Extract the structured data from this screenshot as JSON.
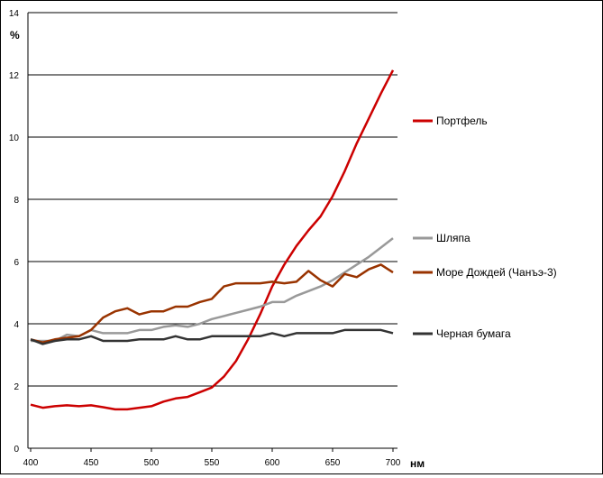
{
  "chart_data": {
    "type": "line",
    "title": "",
    "xlabel": "нм",
    "ylabel": "%",
    "xlim": [
      400,
      700
    ],
    "ylim": [
      0,
      14
    ],
    "x_ticks": [
      400,
      450,
      500,
      550,
      600,
      650,
      700
    ],
    "y_ticks": [
      0,
      2,
      4,
      6,
      8,
      10,
      12,
      14
    ],
    "grid": "horizontal",
    "legend_position": "right",
    "x": [
      400,
      410,
      420,
      430,
      440,
      450,
      460,
      470,
      480,
      490,
      500,
      510,
      520,
      530,
      540,
      550,
      560,
      570,
      580,
      590,
      600,
      610,
      620,
      630,
      640,
      650,
      660,
      670,
      680,
      690,
      700
    ],
    "series": [
      {
        "name": "Портфель",
        "color": "#cc0000",
        "values": [
          1.4,
          1.3,
          1.35,
          1.38,
          1.35,
          1.38,
          1.32,
          1.25,
          1.25,
          1.3,
          1.35,
          1.5,
          1.6,
          1.65,
          1.8,
          1.95,
          2.3,
          2.8,
          3.5,
          4.3,
          5.2,
          5.9,
          6.5,
          7.0,
          7.45,
          8.1,
          8.9,
          9.8,
          10.6,
          11.4,
          12.15
        ]
      },
      {
        "name": "Шляпа",
        "color": "#999999",
        "values": [
          3.45,
          3.45,
          3.45,
          3.65,
          3.6,
          3.8,
          3.7,
          3.7,
          3.7,
          3.8,
          3.8,
          3.9,
          3.95,
          3.9,
          4.0,
          4.15,
          4.25,
          4.35,
          4.45,
          4.55,
          4.7,
          4.7,
          4.9,
          5.05,
          5.2,
          5.4,
          5.65,
          5.9,
          6.15,
          6.45,
          6.75
        ]
      },
      {
        "name": "Море Дождей (Чанъэ-3)",
        "color": "#993300",
        "values": [
          3.5,
          3.4,
          3.5,
          3.55,
          3.6,
          3.8,
          4.2,
          4.4,
          4.5,
          4.3,
          4.4,
          4.4,
          4.55,
          4.55,
          4.7,
          4.8,
          5.2,
          5.3,
          5.3,
          5.3,
          5.35,
          5.3,
          5.35,
          5.7,
          5.4,
          5.2,
          5.6,
          5.5,
          5.75,
          5.9,
          5.65
        ]
      },
      {
        "name": "Черная бумага",
        "color": "#333333",
        "values": [
          3.5,
          3.35,
          3.45,
          3.5,
          3.5,
          3.6,
          3.45,
          3.45,
          3.45,
          3.5,
          3.5,
          3.5,
          3.6,
          3.5,
          3.5,
          3.6,
          3.6,
          3.6,
          3.6,
          3.6,
          3.7,
          3.6,
          3.7,
          3.7,
          3.7,
          3.7,
          3.8,
          3.8,
          3.8,
          3.8,
          3.7
        ]
      }
    ]
  }
}
